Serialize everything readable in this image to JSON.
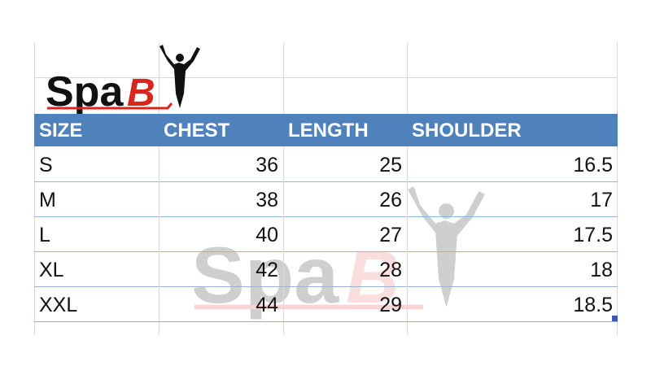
{
  "logo": {
    "text": "SpaBY"
  },
  "table": {
    "headers": [
      "SIZE",
      "CHEST",
      "LENGTH",
      "SHOULDER"
    ],
    "rows": [
      [
        "S",
        "36",
        "25",
        "16.5"
      ],
      [
        "M",
        "38",
        "26",
        "17"
      ],
      [
        "L",
        "40",
        "27",
        "17.5"
      ],
      [
        "XL",
        "42",
        "28",
        "18"
      ],
      [
        "XXL",
        "44",
        "29",
        "18.5"
      ]
    ]
  },
  "colors": {
    "header_bg": "#4f81bd",
    "header_text": "#ffffff",
    "logo_red": "#d9261c",
    "selection_handle": "#3b57b8"
  }
}
